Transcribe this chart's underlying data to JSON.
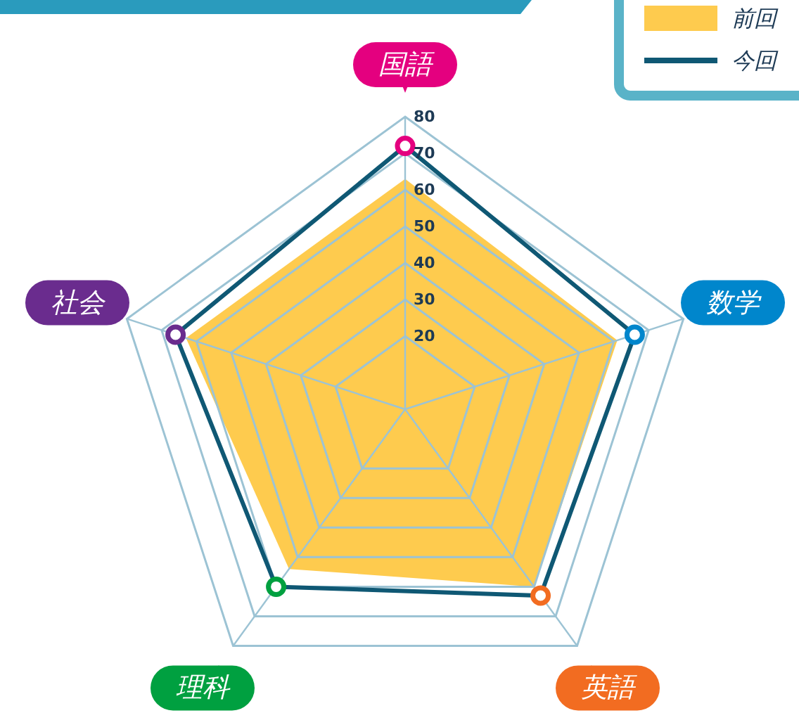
{
  "chart_data": {
    "type": "radar",
    "categories": [
      "国語",
      "数学",
      "英語",
      "理科",
      "社会"
    ],
    "colors": [
      "#e4007f",
      "#0086cc",
      "#f26c21",
      "#00a040",
      "#6a2c8e"
    ],
    "series": [
      {
        "name": "前回",
        "type": "area",
        "color": "#fecb4e",
        "values": [
          63,
          61,
          60,
          54,
          63
        ]
      },
      {
        "name": "今回",
        "marker": "circle",
        "color": "#0f5874",
        "values": [
          72,
          66,
          63,
          60,
          66
        ]
      }
    ],
    "ylim": [
      0,
      80
    ],
    "yticks": [
      20,
      30,
      40,
      50,
      60,
      70,
      80
    ],
    "grid": true,
    "legend": "top right"
  }
}
